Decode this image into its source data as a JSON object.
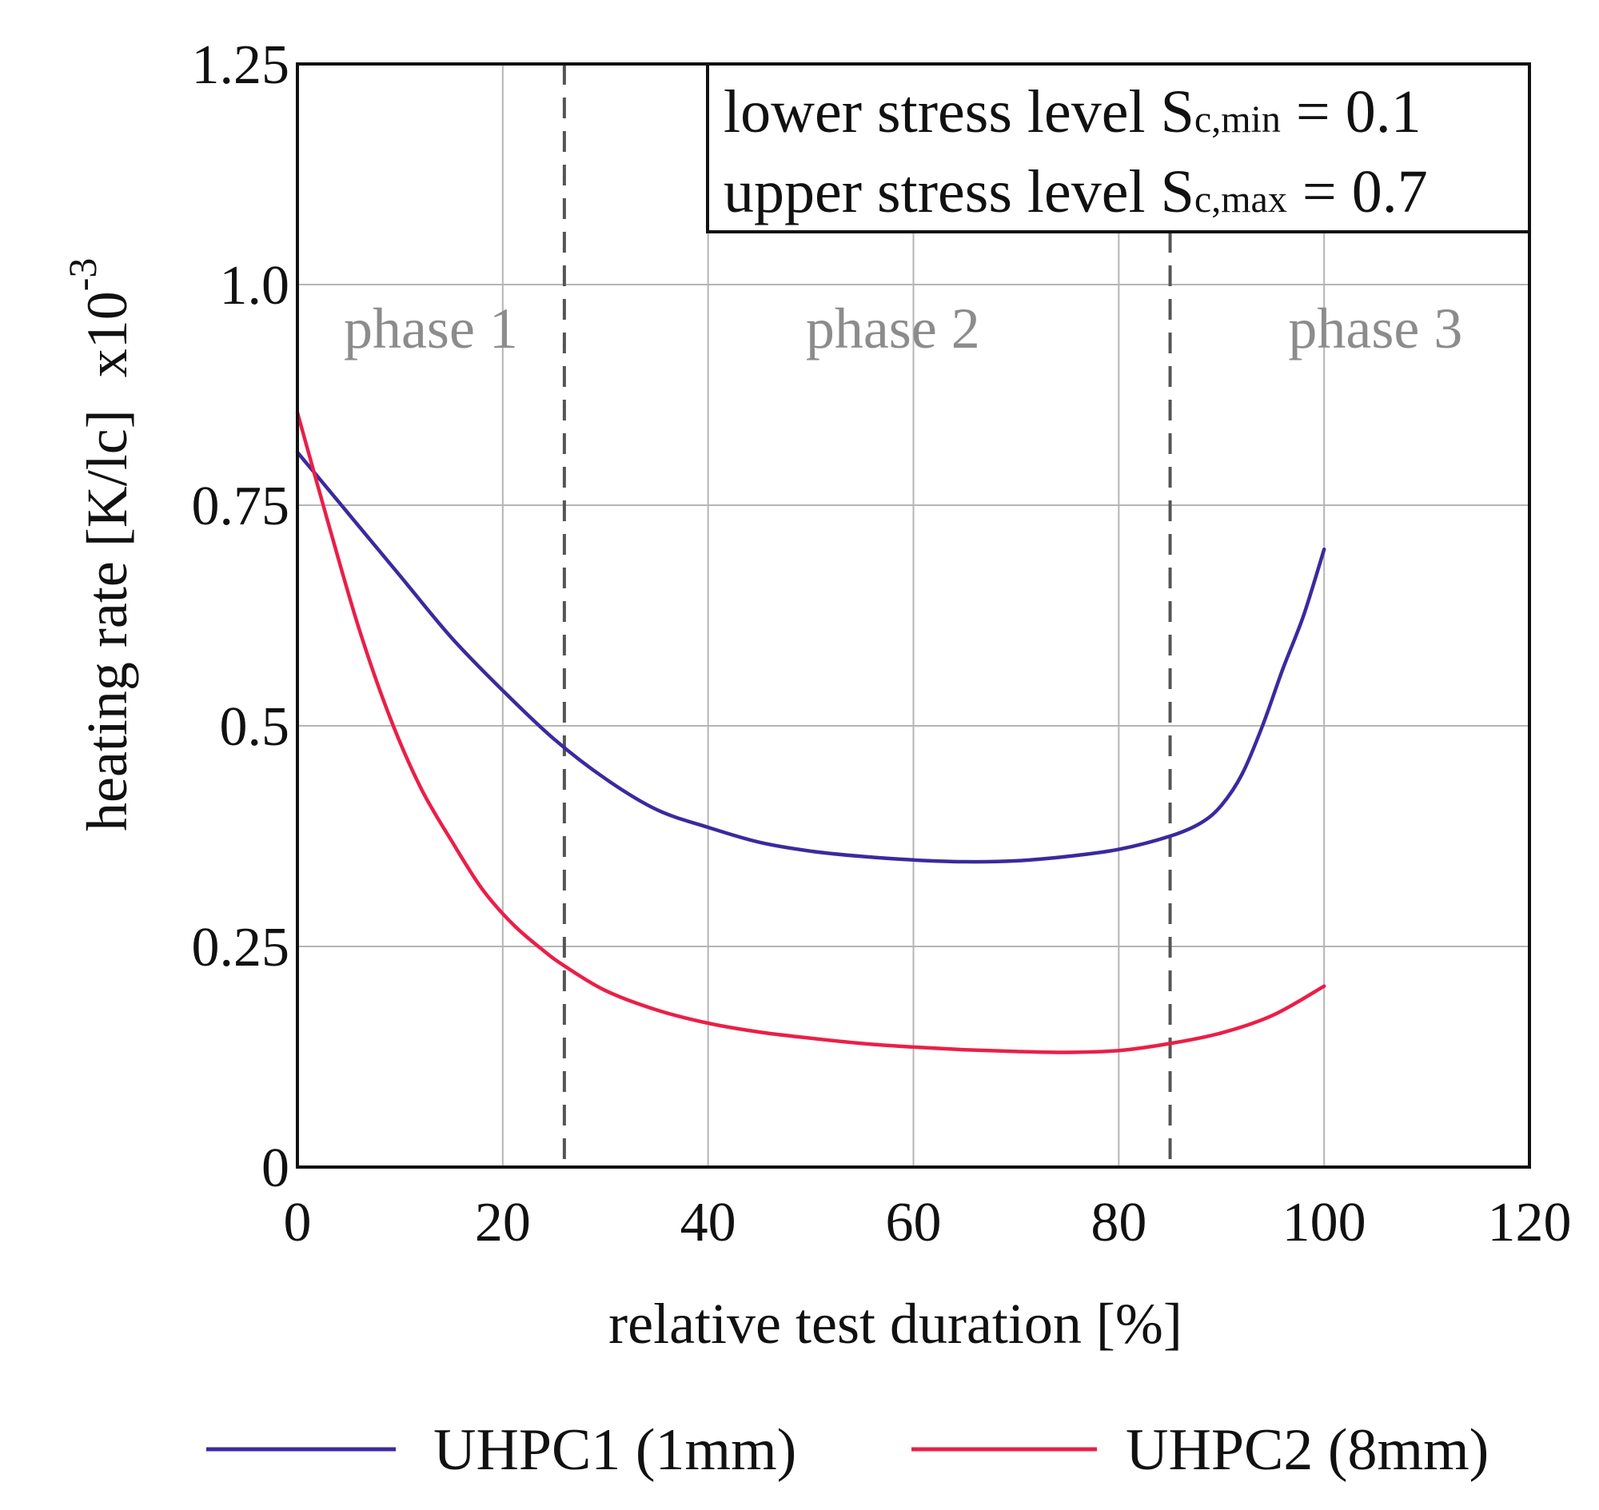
{
  "chart_data": {
    "type": "line",
    "xlabel": "relative test duration [%]",
    "ylabel": "heating rate [K/lc]",
    "y_multiplier": "x10",
    "y_multiplier_exp": "-3",
    "xlim": [
      0,
      120
    ],
    "ylim": [
      0,
      1.25
    ],
    "x_ticks": [
      "0",
      "20",
      "40",
      "60",
      "80",
      "100",
      "120"
    ],
    "y_ticks": [
      "0",
      "0.25",
      "0.5",
      "0.75",
      "1.0",
      "1.25"
    ],
    "x_tick_values": [
      0,
      20,
      40,
      60,
      80,
      100,
      120
    ],
    "y_tick_values": [
      0,
      0.25,
      0.5,
      0.75,
      1.0,
      1.25
    ],
    "grid": true,
    "legend_position": "bottom",
    "phase_boundaries": [
      26,
      85
    ],
    "phases": [
      {
        "label": "phase 1",
        "x": 13
      },
      {
        "label": "phase 2",
        "x": 58
      },
      {
        "label": "phase 3",
        "x": 105
      }
    ],
    "info_box": {
      "line1_prefix": "lower stress level S",
      "line1_sub": "c,min",
      "line1_suffix": " = 0.1",
      "line2_prefix": "upper stress level S",
      "line2_sub": "c,max",
      "line2_suffix": " = 0.7"
    },
    "series": [
      {
        "name": "UHPC1 (1mm)",
        "color": "#3a2a9e",
        "points": [
          [
            0,
            0.81
          ],
          [
            5,
            0.74
          ],
          [
            10,
            0.67
          ],
          [
            15,
            0.6
          ],
          [
            20,
            0.54
          ],
          [
            25,
            0.485
          ],
          [
            30,
            0.44
          ],
          [
            35,
            0.405
          ],
          [
            40,
            0.385
          ],
          [
            45,
            0.368
          ],
          [
            50,
            0.358
          ],
          [
            55,
            0.352
          ],
          [
            60,
            0.348
          ],
          [
            65,
            0.346
          ],
          [
            70,
            0.347
          ],
          [
            75,
            0.352
          ],
          [
            80,
            0.36
          ],
          [
            85,
            0.375
          ],
          [
            88,
            0.39
          ],
          [
            90,
            0.41
          ],
          [
            92,
            0.445
          ],
          [
            94,
            0.5
          ],
          [
            96,
            0.565
          ],
          [
            98,
            0.625
          ],
          [
            100,
            0.7
          ]
        ]
      },
      {
        "name": "UHPC2 (8mm)",
        "color": "#ea1f48",
        "points": [
          [
            0,
            0.855
          ],
          [
            3,
            0.73
          ],
          [
            6,
            0.61
          ],
          [
            9,
            0.51
          ],
          [
            12,
            0.43
          ],
          [
            15,
            0.37
          ],
          [
            18,
            0.315
          ],
          [
            21,
            0.275
          ],
          [
            24,
            0.245
          ],
          [
            26,
            0.228
          ],
          [
            30,
            0.2
          ],
          [
            35,
            0.178
          ],
          [
            40,
            0.163
          ],
          [
            45,
            0.153
          ],
          [
            50,
            0.146
          ],
          [
            55,
            0.14
          ],
          [
            60,
            0.136
          ],
          [
            65,
            0.133
          ],
          [
            70,
            0.131
          ],
          [
            75,
            0.13
          ],
          [
            80,
            0.132
          ],
          [
            85,
            0.14
          ],
          [
            90,
            0.152
          ],
          [
            95,
            0.172
          ],
          [
            100,
            0.205
          ]
        ]
      }
    ]
  }
}
